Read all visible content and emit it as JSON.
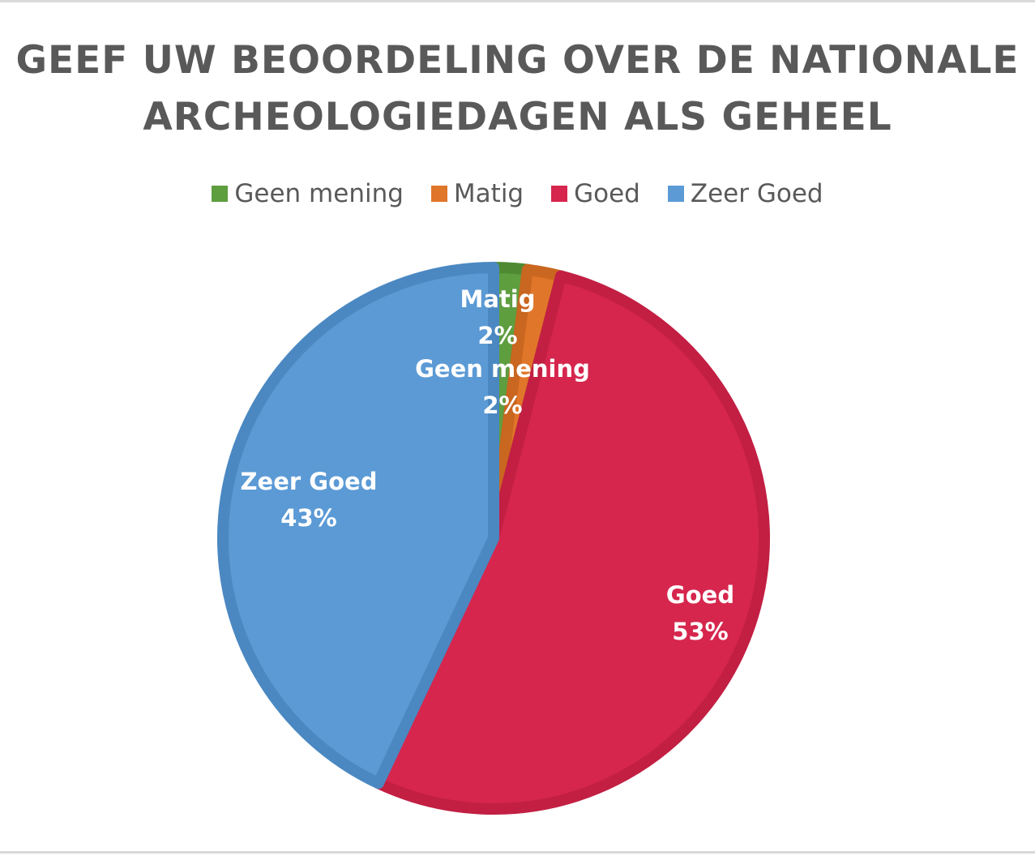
{
  "chart_data": {
    "type": "pie",
    "title_lines": [
      "GEEF UW BEOORDELING OVER DE NATIONALE",
      "ARCHEOLOGIEDAGEN ALS GEHEEL"
    ],
    "legend_position": "top",
    "slices": [
      {
        "label": "Geen mening",
        "value": 2,
        "display": "2%",
        "color": "#5e9e3f",
        "border": "#4f8a33"
      },
      {
        "label": "Matig",
        "value": 2,
        "display": "2%",
        "color": "#e0762a",
        "border": "#c9661f"
      },
      {
        "label": "Goed",
        "value": 53,
        "display": "53%",
        "color": "#d6264d",
        "border": "#c21f43"
      },
      {
        "label": "Zeer Goed",
        "value": 43,
        "display": "43%",
        "color": "#5b9ad5",
        "border": "#4b88c2"
      }
    ]
  }
}
